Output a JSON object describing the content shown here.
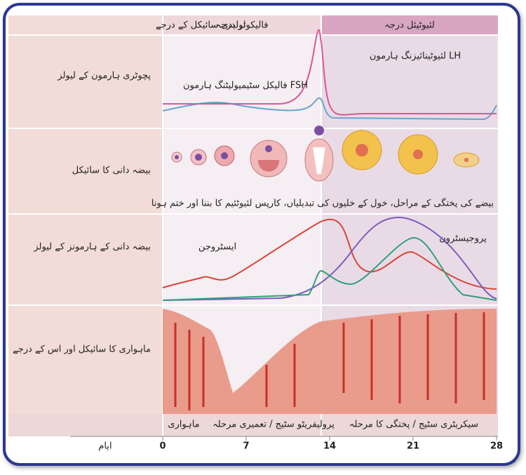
{
  "header": {
    "cycle_stages": "تولیدی سائیکل کے درجے",
    "follicular": "فالیکولر درجہ",
    "luteal": "لئیوٹیئل درجہ"
  },
  "rows": [
    {
      "label": "پچوٹری ہارمون کے لیولز"
    },
    {
      "label": "بیضہ دانی کا سائیکل"
    },
    {
      "label": "بیضہ دانی کے ہارمونز کے لیولز"
    },
    {
      "label": "ماہواری کا سائیکل اور اس کے درجے"
    }
  ],
  "annotations": {
    "fsh": "فالیکل سٹیمیولیٹنگ ہارمون FSH",
    "lh": "لئیوٹینائیزنگ ہارمون LH",
    "ovary_caption": "بیضے کی پختگی کے مراحل، خول کے خلیوں کی تبدیلیاں، کارپس لئیوٹئیم کا بننا اور ختم ہونا",
    "estrogen": "ایسٹروجن",
    "progesterone": "پروجیسٹرون",
    "menstruation": "ماہواری",
    "proliferative": "پرولیفریٹو سٹیج / تعمیری مرحلہ",
    "secretory": "سیکریٹری سٹیج / پختگی کا مرحلہ"
  },
  "axis": {
    "label": "ایام",
    "ticks": [
      0,
      7,
      14,
      21,
      28
    ]
  }
}
